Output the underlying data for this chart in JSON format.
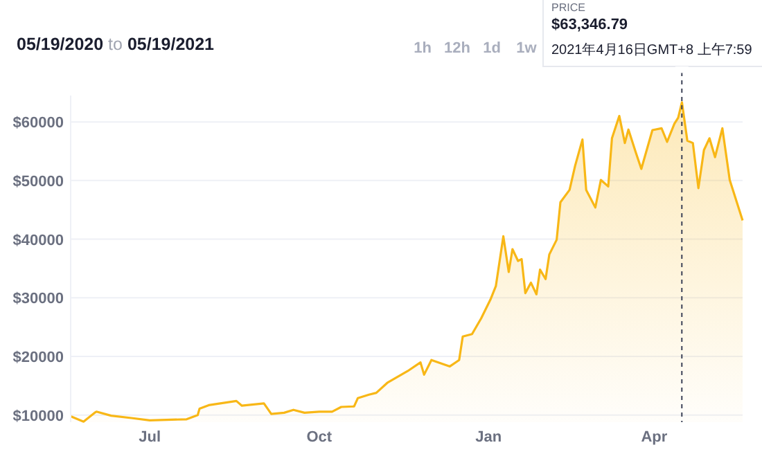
{
  "chart_data": {
    "type": "area",
    "title": "05/19/2020 to 05/19/2021",
    "x": [
      "2020-05-19",
      "2020-05-26",
      "2020-06-01",
      "2020-06-02",
      "2020-06-10",
      "2020-06-21",
      "2020-07-01",
      "2020-07-21",
      "2020-07-27",
      "2020-07-28",
      "2020-08-02",
      "2020-08-17",
      "2020-08-20",
      "2020-09-01",
      "2020-09-05",
      "2020-09-12",
      "2020-09-17",
      "2020-09-23",
      "2020-10-01",
      "2020-10-08",
      "2020-10-13",
      "2020-10-20",
      "2020-10-22",
      "2020-10-28",
      "2020-11-01",
      "2020-11-07",
      "2020-11-18",
      "2020-11-25",
      "2020-11-27",
      "2020-12-01",
      "2020-12-11",
      "2020-12-16",
      "2020-12-18",
      "2020-12-23",
      "2020-12-28",
      "2021-01-02",
      "2021-01-05",
      "2021-01-09",
      "2021-01-12",
      "2021-01-14",
      "2021-01-17",
      "2021-01-19",
      "2021-01-21",
      "2021-01-24",
      "2021-01-27",
      "2021-01-29",
      "2021-02-01",
      "2021-02-03",
      "2021-02-07",
      "2021-02-09",
      "2021-02-14",
      "2021-02-17",
      "2021-02-21",
      "2021-02-23",
      "2021-02-28",
      "2021-03-03",
      "2021-03-07",
      "2021-03-09",
      "2021-03-13",
      "2021-03-16",
      "2021-03-18",
      "2021-03-22",
      "2021-03-25",
      "2021-03-31",
      "2021-04-05",
      "2021-04-08",
      "2021-04-12",
      "2021-04-14",
      "2021-04-16",
      "2021-04-19",
      "2021-04-22",
      "2021-04-25",
      "2021-04-28",
      "2021-05-01",
      "2021-05-04",
      "2021-05-08",
      "2021-05-12",
      "2021-05-19"
    ],
    "series": [
      {
        "color": "#f8b716",
        "values": [
          9800,
          8900,
          10400,
          10600,
          9900,
          9500,
          9100,
          9300,
          10000,
          11100,
          11700,
          12400,
          11600,
          12000,
          10200,
          10400,
          10900,
          10400,
          10600,
          10600,
          11400,
          11500,
          12900,
          13500,
          13800,
          15500,
          17500,
          19000,
          16900,
          19400,
          18300,
          19400,
          23400,
          23800,
          26500,
          29700,
          32000,
          40500,
          34400,
          38300,
          36300,
          36600,
          30800,
          32600,
          30600,
          34800,
          33200,
          37400,
          39900,
          46300,
          48400,
          52500,
          57000,
          48400,
          45400,
          50100,
          49000,
          57200,
          61000,
          56400,
          58700,
          54800,
          52000,
          58600,
          58900,
          56600,
          59700,
          60700,
          63346.79,
          56800,
          56400,
          48700,
          55200,
          57200,
          54000,
          58900,
          50100,
          43200
        ]
      }
    ],
    "xlim": [
      "2020-05-19",
      "2021-05-19"
    ],
    "xticks": [
      {
        "value": "2020-07-01",
        "label": "Jul"
      },
      {
        "value": "2020-10-01",
        "label": "Oct"
      },
      {
        "value": "2021-01-01",
        "label": "Jan"
      },
      {
        "value": "2021-04-01",
        "label": "Apr"
      }
    ],
    "ylim": [
      8800,
      64500
    ],
    "yticks": [
      {
        "value": 10000,
        "label": "$10000"
      },
      {
        "value": 20000,
        "label": "$20000"
      },
      {
        "value": 30000,
        "label": "$30000"
      },
      {
        "value": 40000,
        "label": "$40000"
      },
      {
        "value": 50000,
        "label": "$50000"
      },
      {
        "value": 60000,
        "label": "$60000"
      }
    ],
    "grid": "y",
    "ref_lines": [
      {
        "axis": "x",
        "value": "2021-04-16",
        "color": "#3c4257",
        "line_style": "dashed"
      }
    ],
    "annotations": [
      "1h",
      "12h",
      "1d",
      "1w",
      "PRICE",
      "$63,346.79",
      "2021年4月16日GMT+8 上午7:59"
    ]
  }
}
